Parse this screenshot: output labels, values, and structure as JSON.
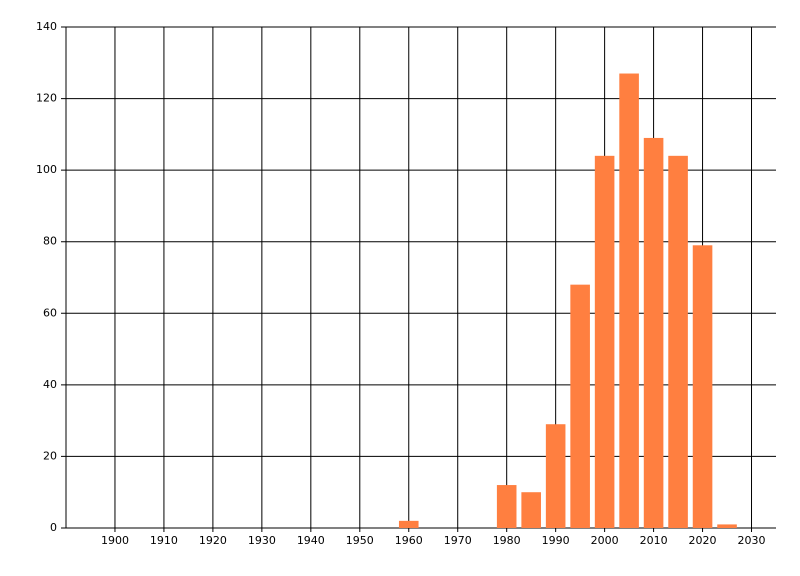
{
  "chart_data": {
    "type": "bar",
    "x": [
      1960,
      1980,
      1985,
      1990,
      1995,
      2000,
      2005,
      2010,
      2015,
      2020,
      2025
    ],
    "values": [
      2,
      12,
      10,
      29,
      68,
      104,
      127,
      109,
      104,
      79,
      1
    ],
    "color": "#ff7f40",
    "xlim": [
      1890,
      2035
    ],
    "xticks": [
      1900,
      1910,
      1920,
      1930,
      1940,
      1950,
      1960,
      1970,
      1980,
      1990,
      2000,
      2010,
      2020,
      2030
    ],
    "ylim": [
      0,
      140
    ],
    "yticks": [
      0,
      20,
      40,
      60,
      80,
      100,
      120,
      140
    ],
    "grid": true
  }
}
